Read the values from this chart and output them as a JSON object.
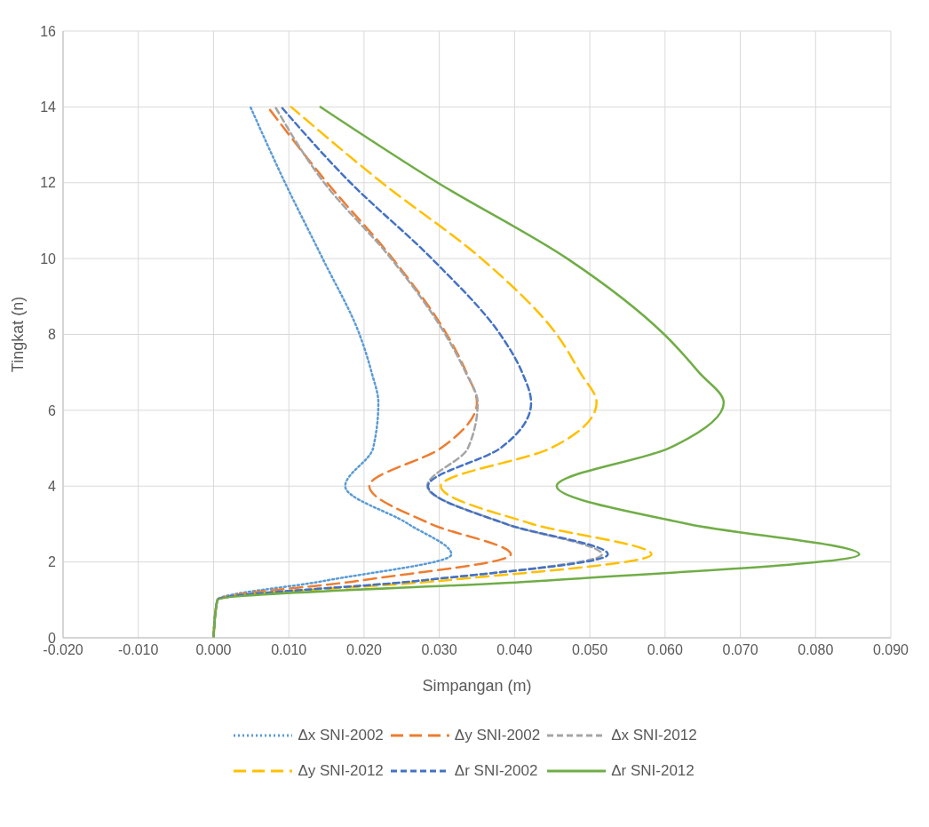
{
  "chart_data": {
    "type": "line",
    "xlabel": "Simpangan (m)",
    "ylabel": "Tingkat (n)",
    "xlim": [
      -0.02,
      0.09
    ],
    "xticks": [
      {
        "value": -0.02,
        "label": "-0.020"
      },
      {
        "value": -0.01,
        "label": "-0.010"
      },
      {
        "value": 0,
        "label": "0.000"
      },
      {
        "value": 0.01,
        "label": "0.010"
      },
      {
        "value": 0.02,
        "label": "0.020"
      },
      {
        "value": 0.03,
        "label": "0.030"
      },
      {
        "value": 0.04,
        "label": "0.040"
      },
      {
        "value": 0.05,
        "label": "0.050"
      },
      {
        "value": 0.06,
        "label": "0.060"
      },
      {
        "value": 0.07,
        "label": "0.070"
      },
      {
        "value": 0.08,
        "label": "0.080"
      },
      {
        "value": 0.09,
        "label": "0.090"
      }
    ],
    "ylim": [
      0,
      16
    ],
    "yticks": [
      0,
      2,
      4,
      6,
      8,
      10,
      12,
      14,
      16
    ],
    "grid": true,
    "legend": "bottom",
    "marker": "none",
    "series": [
      {
        "name": "Δx SNI-2002",
        "color": "#5b9bd5",
        "line_style": "dotted",
        "x": [
          0,
          0.0005,
          0.0147,
          0.0316,
          0.0259,
          0.0175,
          0.0212,
          0.0219,
          0.021,
          0.0194,
          0.0145,
          0.0095,
          0.0049
        ],
        "values": [
          0,
          1,
          1.5,
          2.2,
          3,
          4,
          5,
          6.2,
          7,
          8,
          10,
          12,
          14
        ]
      },
      {
        "name": "Δy SNI-2002",
        "color": "#ed7d31",
        "line_style": "dashed",
        "x": [
          0,
          0.0005,
          0.0191,
          0.0395,
          0.0289,
          0.0207,
          0.0302,
          0.035,
          0.0336,
          0.031,
          0.0238,
          0.0151,
          0.0072
        ],
        "values": [
          0,
          1,
          1.5,
          2.2,
          3,
          4,
          5,
          6.2,
          7,
          8,
          10,
          12,
          14
        ]
      },
      {
        "name": "Δx SNI-2012",
        "color": "#a5a5a5",
        "line_style": "dashed",
        "x": [
          0,
          0.0005,
          0.0271,
          0.0516,
          0.0389,
          0.0284,
          0.0338,
          0.0351,
          0.0335,
          0.0308,
          0.0236,
          0.0147,
          0.0082
        ],
        "values": [
          0,
          1,
          1.5,
          2.2,
          3,
          4,
          5,
          6.2,
          7,
          8,
          10,
          12,
          14
        ]
      },
      {
        "name": "Δy SNI-2012",
        "color": "#ffc000",
        "line_style": "dashed",
        "x": [
          0,
          0.0005,
          0.03,
          0.0582,
          0.0424,
          0.0302,
          0.0448,
          0.0509,
          0.0487,
          0.0456,
          0.0356,
          0.0224,
          0.0103
        ],
        "values": [
          0,
          1,
          1.5,
          2.2,
          3,
          4,
          5,
          6.2,
          7,
          8,
          10,
          12,
          14
        ]
      },
      {
        "name": "Δr SNI-2002",
        "color": "#4472c4",
        "line_style": "dashed",
        "x": [
          0,
          0.0005,
          0.0271,
          0.0524,
          0.0389,
          0.0285,
          0.0381,
          0.0422,
          0.041,
          0.0381,
          0.029,
          0.0182,
          0.009
        ],
        "values": [
          0,
          1,
          1.5,
          2.2,
          3,
          4,
          5,
          6.2,
          7,
          8,
          10,
          12,
          14
        ]
      },
      {
        "name": "Δr SNI-2012",
        "color": "#70ad47",
        "line_style": "solid",
        "x": [
          0,
          0.0005,
          0.0434,
          0.0858,
          0.0631,
          0.0456,
          0.0605,
          0.0678,
          0.0645,
          0.0599,
          0.047,
          0.0298,
          0.0142
        ],
        "values": [
          0,
          1,
          1.5,
          2.2,
          3,
          4,
          5,
          6.2,
          7,
          8,
          10,
          12,
          14
        ]
      }
    ]
  }
}
